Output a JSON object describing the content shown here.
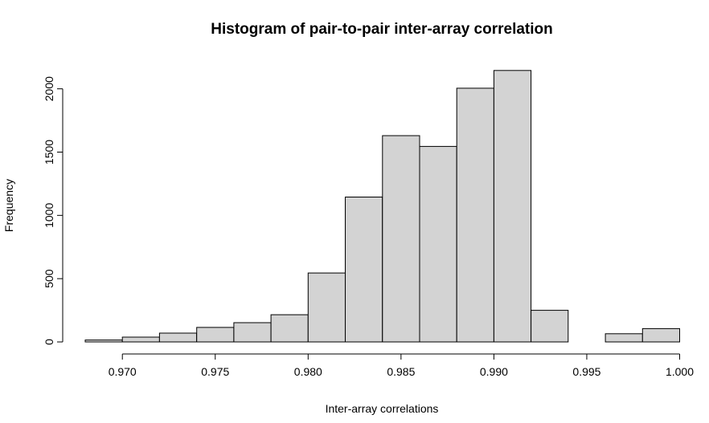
{
  "chart_data": {
    "type": "bar",
    "title": "Histogram of pair-to-pair inter-array correlation",
    "xlabel": "Inter-array correlations",
    "ylabel": "Frequency",
    "xlim": [
      0.968,
      1.0
    ],
    "ylim": [
      0,
      2150
    ],
    "x_ticks": [
      "0.970",
      "0.975",
      "0.980",
      "0.985",
      "0.990",
      "0.995",
      "1.000"
    ],
    "y_ticks": [
      "0",
      "500",
      "1000",
      "1500",
      "2000"
    ],
    "bins": [
      {
        "start": 0.968,
        "end": 0.97,
        "count": 15
      },
      {
        "start": 0.97,
        "end": 0.972,
        "count": 38
      },
      {
        "start": 0.972,
        "end": 0.974,
        "count": 70
      },
      {
        "start": 0.974,
        "end": 0.976,
        "count": 115
      },
      {
        "start": 0.976,
        "end": 0.978,
        "count": 152
      },
      {
        "start": 0.978,
        "end": 0.98,
        "count": 215
      },
      {
        "start": 0.98,
        "end": 0.982,
        "count": 545
      },
      {
        "start": 0.982,
        "end": 0.984,
        "count": 1145
      },
      {
        "start": 0.984,
        "end": 0.986,
        "count": 1630
      },
      {
        "start": 0.986,
        "end": 0.988,
        "count": 1545
      },
      {
        "start": 0.988,
        "end": 0.99,
        "count": 2005
      },
      {
        "start": 0.99,
        "end": 0.992,
        "count": 2145
      },
      {
        "start": 0.992,
        "end": 0.994,
        "count": 250
      },
      {
        "start": 0.994,
        "end": 0.996,
        "count": 0
      },
      {
        "start": 0.996,
        "end": 0.998,
        "count": 65
      },
      {
        "start": 0.998,
        "end": 1.0,
        "count": 105
      }
    ],
    "fill_color": "#d3d3d3",
    "border_color": "#000000",
    "grid": false,
    "legend": "none"
  }
}
